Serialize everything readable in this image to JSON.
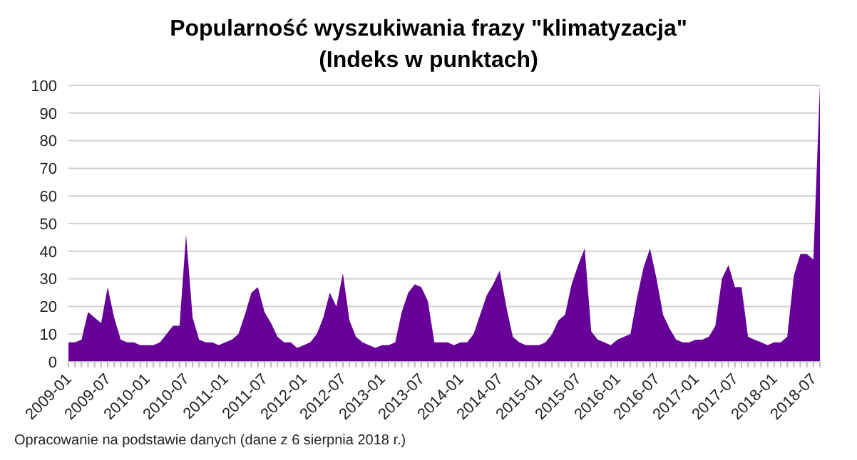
{
  "chart_data": {
    "type": "area",
    "title": "Popularność wyszukiwania frazy \"klimatyzacja\"\n(Indeks w punktach)",
    "categories": [
      "2009-01",
      null,
      null,
      null,
      null,
      null,
      "2009-07",
      null,
      null,
      null,
      null,
      null,
      "2010-01",
      null,
      null,
      null,
      null,
      null,
      "2010-07",
      null,
      null,
      null,
      null,
      null,
      "2011-01",
      null,
      null,
      null,
      null,
      null,
      "2011-07",
      null,
      null,
      null,
      null,
      null,
      "2012-01",
      null,
      null,
      null,
      null,
      null,
      "2012-07",
      null,
      null,
      null,
      null,
      null,
      "2013-01",
      null,
      null,
      null,
      null,
      null,
      "2013-07",
      null,
      null,
      null,
      null,
      null,
      "2014-01",
      null,
      null,
      null,
      null,
      null,
      "2014-07",
      null,
      null,
      null,
      null,
      null,
      "2015-01",
      null,
      null,
      null,
      null,
      null,
      "2015-07",
      null,
      null,
      null,
      null,
      null,
      "2016-01",
      null,
      null,
      null,
      null,
      null,
      "2016-07",
      null,
      null,
      null,
      null,
      null,
      "2017-01",
      null,
      null,
      null,
      null,
      null,
      "2017-07",
      null,
      null,
      null,
      null,
      null,
      "2018-01",
      null,
      null,
      null,
      null,
      null,
      "2018-07",
      null
    ],
    "series": [
      {
        "color": "#660099",
        "values": [
          7,
          7,
          8,
          18,
          16,
          14,
          27,
          16,
          8,
          7,
          7,
          6,
          6,
          6,
          7,
          10,
          13,
          13,
          46,
          16,
          8,
          7,
          7,
          6,
          7,
          8,
          10,
          17,
          25,
          27,
          18,
          14,
          9,
          7,
          7,
          5,
          6,
          7,
          10,
          16,
          25,
          20,
          32,
          15,
          9,
          7,
          6,
          5,
          6,
          6,
          7,
          18,
          25,
          28,
          27,
          22,
          7,
          7,
          7,
          6,
          7,
          7,
          10,
          17,
          24,
          28,
          33,
          20,
          9,
          7,
          6,
          6,
          6,
          7,
          10,
          15,
          17,
          28,
          35,
          41,
          11,
          8,
          7,
          6,
          8,
          9,
          10,
          23,
          34,
          41,
          30,
          17,
          12,
          8,
          7,
          7,
          8,
          8,
          9,
          13,
          30,
          35,
          27,
          27,
          9,
          8,
          7,
          6,
          7,
          7,
          9,
          31,
          39,
          39,
          37,
          100
        ]
      }
    ],
    "ylim": [
      0,
      100
    ],
    "yticks": [
      0,
      10,
      20,
      30,
      40,
      50,
      60,
      70,
      80,
      90,
      100
    ],
    "grid": "y",
    "annotations": [
      "Opracowanie na podstawie danych (dane z 6 sierpnia 2018 r.)"
    ]
  }
}
